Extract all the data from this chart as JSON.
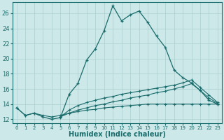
{
  "xlabel": "Humidex (Indice chaleur)",
  "bg_color": "#cce8e8",
  "line_color": "#1a6b6b",
  "grid_color": "#aacfcf",
  "xlim": [
    -0.5,
    23.5
  ],
  "ylim": [
    11.5,
    27.5
  ],
  "xticks": [
    0,
    1,
    2,
    3,
    4,
    5,
    6,
    7,
    8,
    9,
    10,
    11,
    12,
    13,
    14,
    15,
    16,
    17,
    18,
    19,
    20,
    21,
    22,
    23
  ],
  "yticks": [
    12,
    14,
    16,
    18,
    20,
    22,
    24,
    26
  ],
  "main_x": [
    0,
    1,
    2,
    3,
    4,
    5,
    6,
    7,
    8,
    9,
    10,
    11,
    12,
    13,
    14,
    15,
    16,
    17,
    18,
    19,
    20,
    21,
    22,
    23
  ],
  "main_y": [
    13.5,
    12.5,
    12.8,
    12.3,
    12.0,
    12.2,
    15.3,
    16.7,
    19.8,
    21.3,
    23.7,
    27.0,
    25.0,
    25.8,
    26.3,
    24.8,
    23.0,
    21.5,
    18.5,
    17.5,
    16.8,
    15.8,
    14.5,
    14.0
  ],
  "line2_x": [
    5,
    6,
    7,
    8,
    9,
    10,
    11,
    12,
    13,
    14,
    15,
    16,
    17,
    18,
    19,
    20,
    21,
    22,
    23
  ],
  "line2_y": [
    12.3,
    12.8,
    13.2,
    13.5,
    13.8,
    14.0,
    14.3,
    14.5,
    14.8,
    15.0,
    15.2,
    15.5,
    15.7,
    16.0,
    16.3,
    16.7,
    15.8,
    14.8,
    14.1
  ],
  "line3_x": [
    5,
    6,
    7,
    8,
    9,
    10,
    11,
    12,
    13,
    14,
    15,
    16,
    17,
    18,
    19,
    20,
    21,
    22,
    23
  ],
  "line3_y": [
    12.3,
    13.2,
    13.8,
    14.2,
    14.5,
    14.8,
    15.0,
    15.3,
    15.5,
    15.7,
    15.9,
    16.1,
    16.3,
    16.5,
    16.8,
    17.2,
    16.2,
    15.2,
    14.2
  ],
  "line4_x": [
    0,
    1,
    2,
    3,
    4,
    5,
    6,
    7,
    8,
    9,
    10,
    11,
    12,
    13,
    14,
    15,
    16,
    17,
    18,
    19,
    20,
    21,
    22,
    23
  ],
  "line4_y": [
    13.5,
    12.5,
    12.8,
    12.5,
    12.3,
    12.5,
    12.8,
    13.0,
    13.2,
    13.3,
    13.5,
    13.6,
    13.7,
    13.8,
    13.9,
    14.0,
    14.0,
    14.0,
    14.0,
    14.0,
    14.0,
    14.0,
    14.0,
    14.0
  ]
}
